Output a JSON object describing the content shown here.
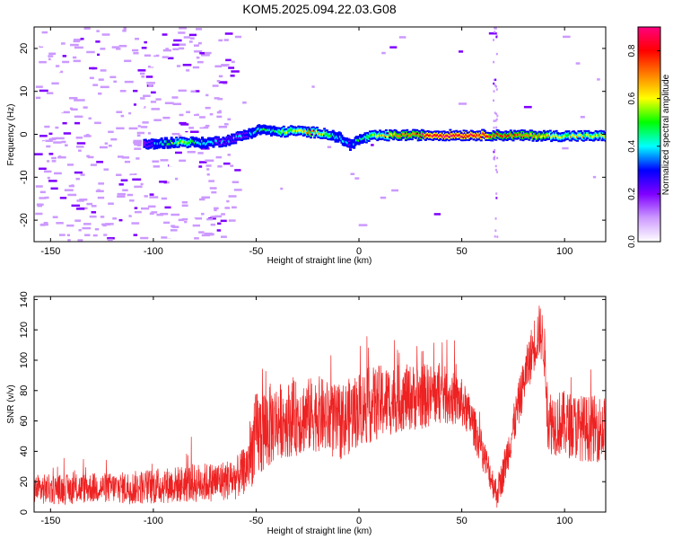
{
  "title": "KOM5.2025.094.22.03.G08",
  "chart_data": [
    {
      "type": "heatmap",
      "xlabel": "Height of straight line (km)",
      "ylabel": "Frequency (Hz)",
      "xlim": [
        -158,
        120
      ],
      "ylim": [
        -25,
        25
      ],
      "xticks": [
        -150,
        -100,
        -50,
        0,
        50,
        100
      ],
      "yticks": [
        -20,
        -10,
        0,
        10,
        20
      ],
      "colorbar": {
        "label": "Normalized spectral amplitude",
        "ticks": [
          0.0,
          0.2,
          0.4,
          0.6,
          0.8
        ],
        "range": [
          0,
          0.9
        ],
        "colors": [
          "#ffffff",
          "#cc99ff",
          "#7f00ff",
          "#0000ff",
          "#00ffff",
          "#00ff00",
          "#ffff00",
          "#ff8000",
          "#ff0000",
          "#ff0080"
        ]
      },
      "signal_trace": {
        "x": [
          -105,
          -95,
          -85,
          -75,
          -65,
          -55,
          -48,
          -40,
          -32,
          -25,
          -18,
          -10,
          -5,
          0,
          5,
          10,
          20,
          40,
          60,
          80,
          100,
          120
        ],
        "freq_hz": [
          -2.5,
          -2.0,
          -1.8,
          -2.0,
          -1.5,
          0.0,
          1.2,
          0.5,
          0.8,
          0.5,
          0.3,
          -0.8,
          -2.5,
          -1.2,
          -0.5,
          -0.3,
          -0.2,
          -0.2,
          -0.2,
          -0.3,
          -0.4,
          -0.4
        ],
        "amplitude": [
          0.25,
          0.45,
          0.55,
          0.4,
          0.3,
          0.35,
          0.45,
          0.5,
          0.55,
          0.65,
          0.6,
          0.4,
          0.35,
          0.45,
          0.55,
          0.6,
          0.7,
          0.85,
          0.8,
          0.7,
          0.6,
          0.55
        ]
      }
    },
    {
      "type": "line",
      "xlabel": "Height of straight line (km)",
      "ylabel": "SNR (v/v)",
      "xlim": [
        -158,
        120
      ],
      "ylim": [
        0,
        142
      ],
      "xticks": [
        -150,
        -100,
        -50,
        0,
        50,
        100
      ],
      "yticks": [
        0,
        20,
        40,
        60,
        80,
        100,
        120,
        140
      ],
      "series": [
        {
          "color": "#ee2222",
          "x": [
            -158,
            -150,
            -140,
            -130,
            -120,
            -110,
            -100,
            -90,
            -80,
            -70,
            -60,
            -55,
            -50,
            -45,
            -40,
            -30,
            -20,
            -10,
            0,
            10,
            20,
            30,
            40,
            50,
            55,
            60,
            65,
            67,
            70,
            75,
            80,
            85,
            88,
            90,
            92,
            100,
            110,
            120
          ],
          "mean": [
            15,
            15,
            15,
            16,
            16,
            16,
            17,
            18,
            19,
            20,
            22,
            28,
            50,
            55,
            60,
            62,
            65,
            58,
            68,
            72,
            75,
            76,
            78,
            72,
            60,
            40,
            20,
            12,
            25,
            55,
            85,
            110,
            120,
            110,
            60,
            58,
            55,
            55
          ],
          "spread": [
            10,
            10,
            10,
            10,
            10,
            11,
            12,
            12,
            13,
            13,
            14,
            16,
            30,
            30,
            25,
            25,
            25,
            25,
            25,
            25,
            22,
            22,
            20,
            16,
            14,
            12,
            10,
            10,
            12,
            14,
            16,
            18,
            18,
            18,
            22,
            22,
            22,
            22
          ]
        }
      ]
    }
  ]
}
